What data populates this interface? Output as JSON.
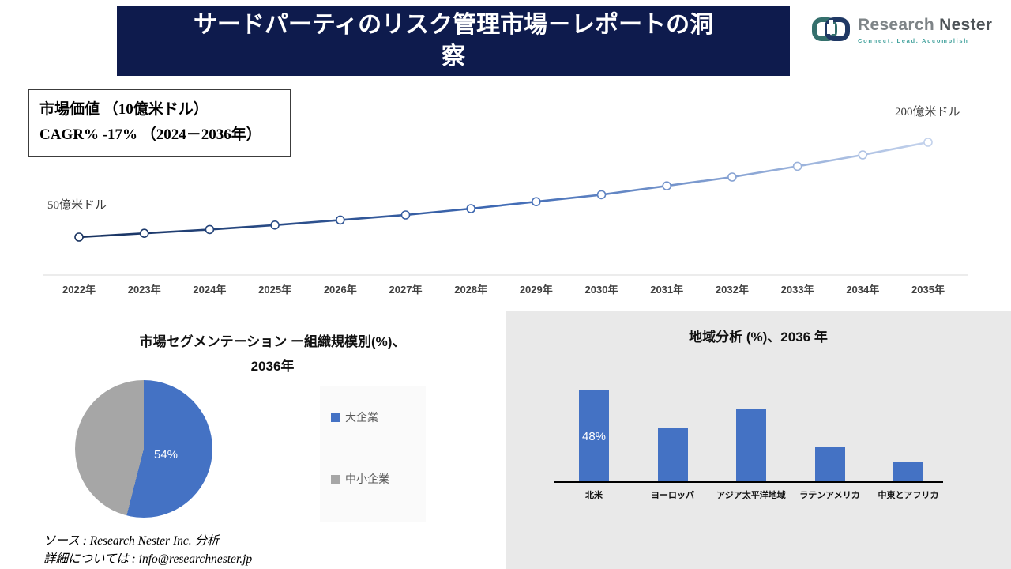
{
  "header": {
    "title": "サードパーティのリスク管理市場－レポートの洞察"
  },
  "logo": {
    "brand_research": "Research",
    "brand_nester": "Nester",
    "tagline": "Connect. Lead. Accomplish"
  },
  "footer": {
    "source_line": "ソース : Research Nester Inc. 分析",
    "contact_line": "詳細については : info@researchnester.jp"
  },
  "chart_data": [
    {
      "type": "line",
      "title": "市場価値 （10億米ドル）",
      "subtitle": "CAGR% -17% （2024－2036年）",
      "x": [
        "2022年",
        "2023年",
        "2024年",
        "2025年",
        "2026年",
        "2027年",
        "2028年",
        "2029年",
        "2030年",
        "2031年",
        "2032年",
        "2033年",
        "2034年",
        "2035年"
      ],
      "values": [
        50,
        56,
        62,
        69,
        77,
        85,
        95,
        106,
        117,
        131,
        145,
        162,
        180,
        200
      ],
      "start_annotation": "50億米ドル",
      "end_annotation": "200億米ドル",
      "ylabel": "10億米ドル",
      "ylim": [
        0,
        220
      ],
      "line_colors": [
        "#17315e",
        "#3f6ab5",
        "#c3d2ec"
      ],
      "grid": false
    },
    {
      "type": "pie",
      "title_line1": "市場セグメンテーション ー組織規模別(%)、",
      "title_line2": "2036年",
      "labels": [
        "大企業",
        "中小企業"
      ],
      "values": [
        54,
        46
      ],
      "colors": [
        "#4472c4",
        "#a6a6a6"
      ],
      "data_label": "54%",
      "legend_position": "right"
    },
    {
      "type": "bar",
      "title": "地域分析 (%)、2036 年",
      "categories": [
        "北米",
        "ヨーロッパ",
        "アジア太平洋地域",
        "ラテンアメリカ",
        "中東とアフリカ"
      ],
      "values": [
        48,
        28,
        38,
        18,
        10
      ],
      "bar_color": "#4472c4",
      "data_label": "48%",
      "ylim": [
        0,
        55
      ],
      "grid": false
    }
  ]
}
